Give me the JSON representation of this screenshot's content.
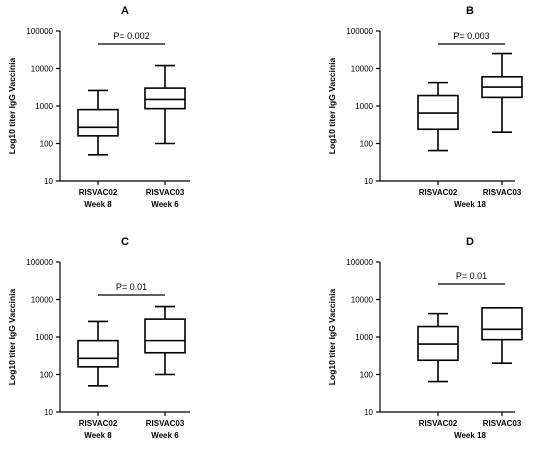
{
  "chart_data": [
    {
      "panel": "A",
      "type": "box",
      "ylabel": "Log10 titer IgG Vaccinia",
      "yscale": "log",
      "ylim": [
        10,
        100000
      ],
      "yticks": [
        "10",
        "100",
        "1000",
        "10000",
        "100000"
      ],
      "categories": [
        "RISVAC02",
        "RISVAC03"
      ],
      "sublabels": [
        "Week 8",
        "Week 6"
      ],
      "groupLabel": "",
      "pvalue": "P= 0.002",
      "boxes": [
        {
          "min": 50,
          "q1": 160,
          "median": 270,
          "q3": 800,
          "max": 2600
        },
        {
          "min": 100,
          "q1": 850,
          "median": 1500,
          "q3": 3000,
          "max": 12000
        }
      ]
    },
    {
      "panel": "B",
      "type": "box",
      "ylabel": "Log10 titer IgG Vaccinia",
      "yscale": "log",
      "ylim": [
        10,
        100000
      ],
      "yticks": [
        "10",
        "100",
        "1000",
        "10000",
        "100000"
      ],
      "categories": [
        "RISVAC02",
        "RISVAC03"
      ],
      "sublabels": [],
      "groupLabel": "Week 18",
      "pvalue": "P= 0.003",
      "boxes": [
        {
          "min": 65,
          "q1": 240,
          "median": 650,
          "q3": 1900,
          "max": 4200
        },
        {
          "min": 200,
          "q1": 1700,
          "median": 3200,
          "q3": 6000,
          "max": 25000
        }
      ]
    },
    {
      "panel": "C",
      "type": "box",
      "ylabel": "Log10 titer IgG Vaccinia",
      "yscale": "log",
      "ylim": [
        10,
        100000
      ],
      "yticks": [
        "10",
        "100",
        "1000",
        "10000",
        "100000"
      ],
      "categories": [
        "RISVAC02",
        "RISVAC03"
      ],
      "sublabels": [
        "Week 8",
        "Week 6"
      ],
      "groupLabel": "",
      "pvalue": "P= 0.01",
      "boxes": [
        {
          "min": 50,
          "q1": 160,
          "median": 270,
          "q3": 800,
          "max": 2600
        },
        {
          "min": 100,
          "q1": 380,
          "median": 800,
          "q3": 3000,
          "max": 6500
        }
      ]
    },
    {
      "panel": "D",
      "type": "box",
      "ylabel": "Log10 titer IgG Vaccinia",
      "yscale": "log",
      "ylim": [
        10,
        100000
      ],
      "yticks": [
        "10",
        "100",
        "1000",
        "10000",
        "100000"
      ],
      "categories": [
        "RISVAC02",
        "RISVAC03"
      ],
      "sublabels": [],
      "groupLabel": "Week 18",
      "pvalue": "P= 0.01",
      "boxes": [
        {
          "min": 65,
          "q1": 240,
          "median": 650,
          "q3": 1900,
          "max": 4200
        },
        {
          "min": 200,
          "q1": 850,
          "median": 1600,
          "q3": 6000,
          "max": 6000
        }
      ]
    }
  ]
}
